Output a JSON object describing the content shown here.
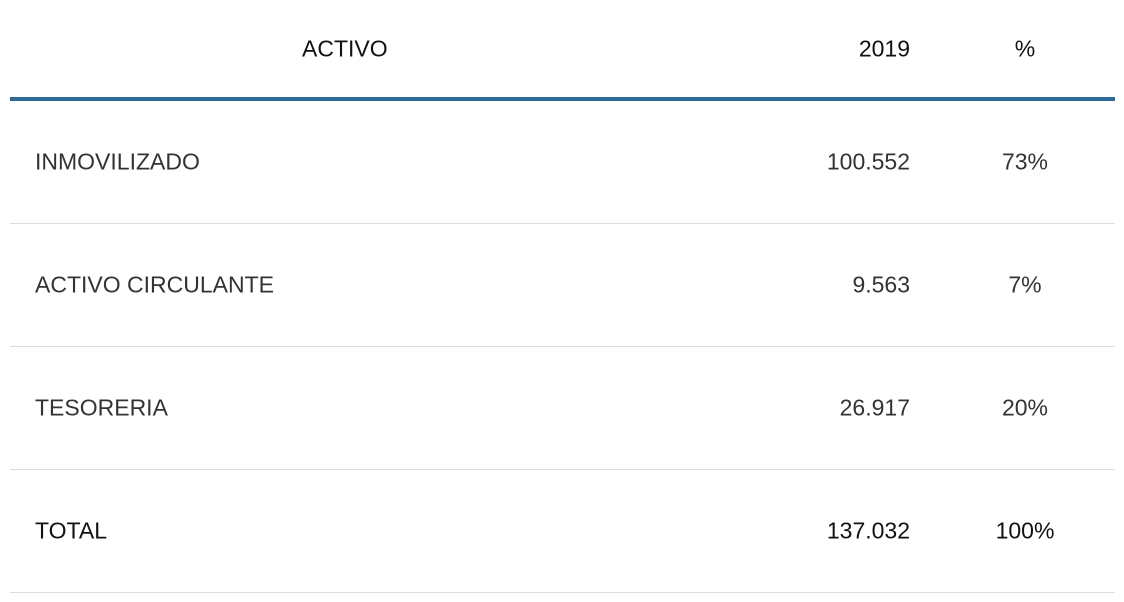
{
  "table": {
    "header": [
      "ACTIVO",
      "2019",
      "%"
    ],
    "rows": [
      [
        "INMOVILIZADO",
        "100.552",
        "73%"
      ],
      [
        "ACTIVO CIRCULANTE",
        "9.563",
        "7%"
      ],
      [
        "TESORERIA",
        "26.917",
        "20%"
      ],
      [
        "TOTAL",
        "137.032",
        "100%"
      ]
    ]
  }
}
